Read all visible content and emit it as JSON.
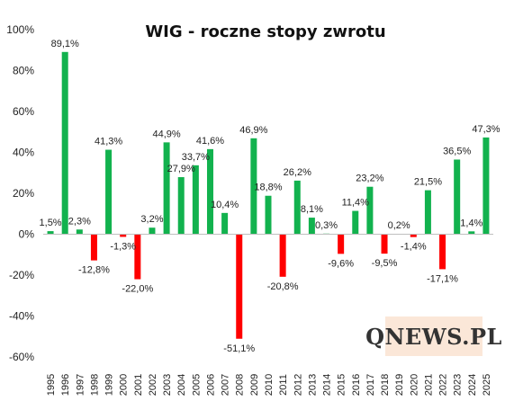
{
  "chart_data": {
    "type": "bar",
    "title": "WIG - roczne stopy zwrotu",
    "xlabel": "",
    "ylabel": "",
    "ylim": [
      -60,
      100
    ],
    "ytick_step": 20,
    "ytick_suffix": "%",
    "grid": false,
    "positive_color": "#12b24e",
    "negative_color": "#ff0000",
    "categories": [
      "1995",
      "1996",
      "1997",
      "1998",
      "1999",
      "2000",
      "2001",
      "2002",
      "2003",
      "2004",
      "2005",
      "2006",
      "2007",
      "2008",
      "2009",
      "2010",
      "2011",
      "2012",
      "2013",
      "2014",
      "2015",
      "2016",
      "2017",
      "2018",
      "2019",
      "2020",
      "2021",
      "2022",
      "2023",
      "2024",
      "2025"
    ],
    "values": [
      1.5,
      89.1,
      2.3,
      -12.8,
      41.3,
      -1.3,
      -22.0,
      3.2,
      44.9,
      27.9,
      33.7,
      41.6,
      10.4,
      -51.1,
      46.9,
      18.8,
      -20.8,
      26.2,
      8.1,
      0.3,
      -9.6,
      11.4,
      23.2,
      -9.5,
      0.2,
      -1.4,
      21.5,
      -17.1,
      36.5,
      1.4,
      47.3
    ],
    "labels": [
      "1,5%",
      "89,1%",
      "2,3%",
      "-12,8%",
      "41,3%",
      "-1,3%",
      "-22,0%",
      "3,2%",
      "44,9%",
      "27,9%",
      "33,7%",
      "41,6%",
      "10,4%",
      "-51,1%",
      "46,9%",
      "18,8%",
      "-20,8%",
      "26,2%",
      "8,1%",
      "0,3%",
      "-9,6%",
      "11,4%",
      "23,2%",
      "-9,5%",
      "0,2%",
      "-1,4%",
      "21,5%",
      "-17,1%",
      "36,5%",
      "1,4%",
      "47,3%"
    ]
  },
  "watermark": {
    "text": "QNEWS.PL"
  }
}
